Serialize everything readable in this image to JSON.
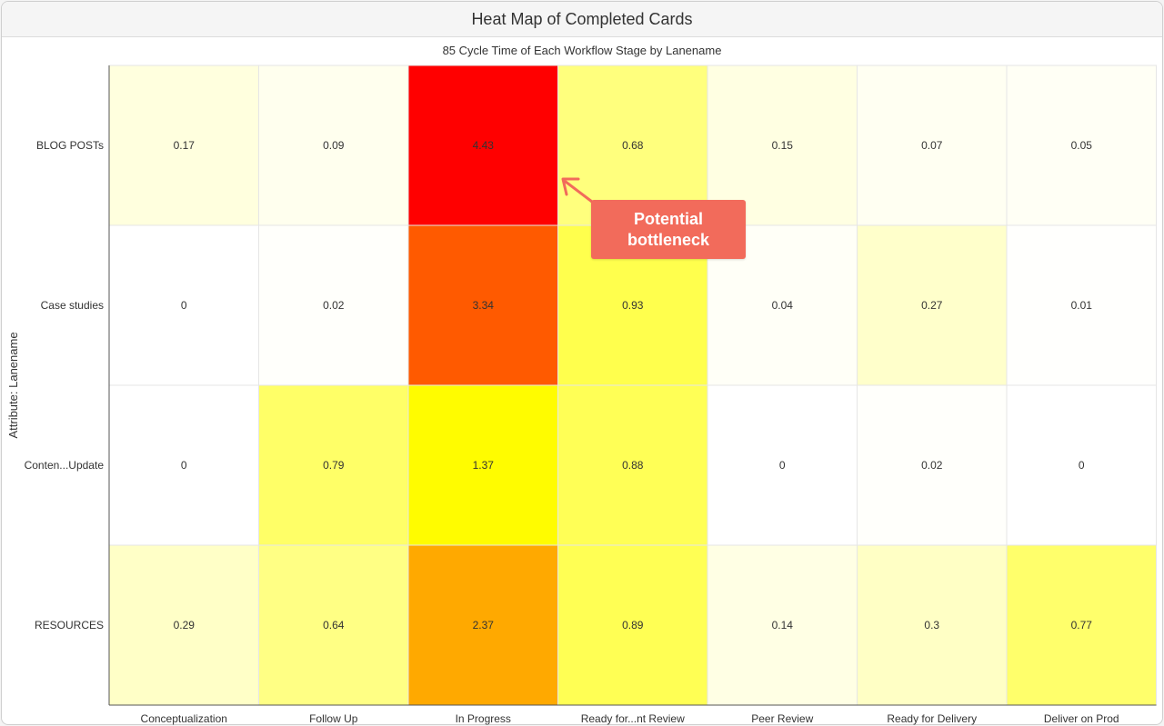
{
  "window": {
    "title": "Heat Map of Completed Cards"
  },
  "annotation": {
    "line1": "Potential",
    "line2": "bottleneck",
    "color": "#f26b5b"
  },
  "chart_data": {
    "type": "heatmap",
    "title": "85 Cycle Time of Each Workflow Stage by Lanename",
    "ylabel": "Attribute: Lanename",
    "xlabel": "",
    "x": [
      "Conceptualization",
      "Follow Up",
      "In Progress",
      "Ready for...nt Review",
      "Peer Review",
      "Ready for Delivery",
      "Deliver on Prod"
    ],
    "y": [
      "BLOG POSTs",
      "Case studies",
      "Conten...Update",
      "RESOURCES"
    ],
    "values": [
      [
        "0.17",
        "0.09",
        "4.43",
        "0.68",
        "0.15",
        "0.07",
        "0.05"
      ],
      [
        "0",
        "0.02",
        "3.34",
        "0.93",
        "0.04",
        "0.27",
        "0.01"
      ],
      [
        "0",
        "0.79",
        "1.37",
        "0.88",
        "0",
        "0.02",
        "0"
      ],
      [
        "0.29",
        "0.64",
        "2.37",
        "0.89",
        "0.14",
        "0.3",
        "0.77"
      ]
    ],
    "colorscale": [
      "#ffffff",
      "#ffff00",
      "#ff0000"
    ],
    "zrange": [
      0,
      4.43
    ],
    "grid": true
  }
}
